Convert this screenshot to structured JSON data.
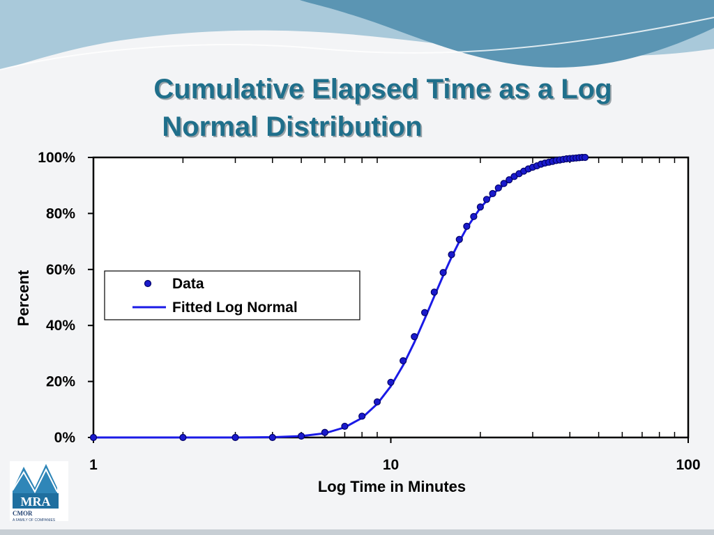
{
  "slide": {
    "title_line_1": "Cumulative Elapsed Time as a Log",
    "title_line_2": "Normal Distribution",
    "logo": {
      "text": "MRA",
      "subtext": "CMOR",
      "fine_print": "A FAMILY OF COMPANIES"
    },
    "colors": {
      "wave_dark": "#5b95b3",
      "wave_light": "#a9c9da",
      "title": "#1f6f8b"
    }
  },
  "chart_data": {
    "type": "scatter",
    "title": "",
    "xlabel": "Log Time in Minutes",
    "ylabel": "Percent",
    "x_scale": "log",
    "xlim": [
      1,
      100
    ],
    "ylim": [
      0,
      100
    ],
    "x_ticks": [
      {
        "value": 1,
        "label": "1"
      },
      {
        "value": 10,
        "label": "10"
      },
      {
        "value": 100,
        "label": "100"
      }
    ],
    "y_ticks": [
      {
        "value": 0,
        "label": "0%"
      },
      {
        "value": 20,
        "label": "20%"
      },
      {
        "value": 40,
        "label": "40%"
      },
      {
        "value": 60,
        "label": "60%"
      },
      {
        "value": 80,
        "label": "80%"
      },
      {
        "value": 100,
        "label": "100%"
      }
    ],
    "legend": {
      "position": "left",
      "entries": [
        "Data",
        "Fitted Log Normal"
      ]
    },
    "colors": {
      "marker_fill": "#1a1acc",
      "marker_edge": "#000066",
      "line": "#1a1ae6"
    },
    "series": [
      {
        "name": "Data",
        "kind": "points",
        "x": [
          1,
          2,
          3,
          4,
          5,
          6,
          7,
          8,
          9,
          10,
          11,
          12,
          13,
          14,
          15,
          16,
          17,
          18,
          19,
          20,
          21,
          22,
          23,
          24,
          25,
          26,
          27,
          28,
          29,
          30,
          31,
          32,
          33,
          34,
          35,
          36,
          37,
          38,
          39,
          40,
          41,
          42,
          43,
          44,
          45
        ],
        "y": [
          0,
          0,
          0,
          0,
          0.5,
          1.8,
          4,
          7.6,
          12.7,
          19.7,
          27.4,
          36,
          44.6,
          51.9,
          58.9,
          65.3,
          70.7,
          75.4,
          78.9,
          82.3,
          85,
          87.1,
          89.1,
          90.7,
          92,
          93.2,
          94.2,
          95.1,
          95.9,
          96.5,
          97,
          97.6,
          98,
          98.3,
          98.6,
          98.9,
          99.1,
          99.3,
          99.5,
          99.6,
          99.7,
          99.8,
          99.9,
          100,
          100
        ]
      },
      {
        "name": "Fitted Log Normal",
        "kind": "line",
        "x": [
          1,
          3,
          4,
          5,
          6,
          7,
          8,
          9,
          10,
          11,
          12,
          13,
          14,
          15,
          16,
          17,
          18,
          20,
          22,
          25,
          28,
          32,
          36,
          40,
          45
        ],
        "y": [
          0,
          0,
          0.1,
          0.5,
          1.5,
          3.6,
          7,
          12,
          18.3,
          25.8,
          34,
          42.4,
          50.4,
          57.8,
          64.4,
          70,
          74.8,
          82,
          86.9,
          91.8,
          94.7,
          96.9,
          98.2,
          99,
          99.5
        ]
      }
    ]
  }
}
